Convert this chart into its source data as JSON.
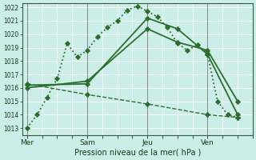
{
  "bg_color": "#cceee8",
  "grid_color": "#ffffff",
  "line_color": "#2d6e2d",
  "xlabel": "Pression niveau de la mer( hPa )",
  "ylim": [
    1012.5,
    1022.3
  ],
  "yticks": [
    1013,
    1014,
    1015,
    1016,
    1017,
    1018,
    1019,
    1020,
    1021,
    1022
  ],
  "xtick_labels": [
    "Mer",
    "Sam",
    "Jeu",
    "Ven"
  ],
  "xtick_positions": [
    0,
    24,
    48,
    72
  ],
  "xlim": [
    -2,
    90
  ],
  "vline_positions": [
    0,
    24,
    48,
    72
  ],
  "lines": [
    {
      "x": [
        0,
        4,
        8,
        12,
        16,
        20,
        24,
        28,
        32,
        36,
        40,
        44,
        48,
        52,
        56,
        60,
        64,
        68,
        72,
        76,
        80,
        84
      ],
      "y": [
        1013.0,
        1014.0,
        1015.3,
        1016.7,
        1019.3,
        1018.3,
        1018.8,
        1019.8,
        1020.5,
        1021.0,
        1021.8,
        1022.1,
        1021.7,
        1021.3,
        1020.5,
        1019.3,
        1018.8,
        1019.2,
        1018.5,
        1015.0,
        1014.0,
        1013.8
      ],
      "style": ":",
      "marker": "P",
      "markersize": 3.5,
      "linewidth": 1.3
    },
    {
      "x": [
        0,
        24,
        48,
        60,
        72,
        84
      ],
      "y": [
        1016.2,
        1016.3,
        1021.2,
        1020.4,
        1018.5,
        1014.0
      ],
      "style": "-",
      "marker": "P",
      "markersize": 3.5,
      "linewidth": 1.3
    },
    {
      "x": [
        0,
        24,
        48,
        60,
        72,
        84
      ],
      "y": [
        1016.0,
        1016.5,
        1020.4,
        1019.4,
        1018.8,
        1015.0
      ],
      "style": "-",
      "marker": "P",
      "markersize": 3.5,
      "linewidth": 1.3
    },
    {
      "x": [
        0,
        24,
        48,
        72,
        84
      ],
      "y": [
        1016.3,
        1015.5,
        1014.8,
        1014.0,
        1013.8
      ],
      "style": "--",
      "marker": "P",
      "markersize": 3.5,
      "linewidth": 1.0
    }
  ]
}
